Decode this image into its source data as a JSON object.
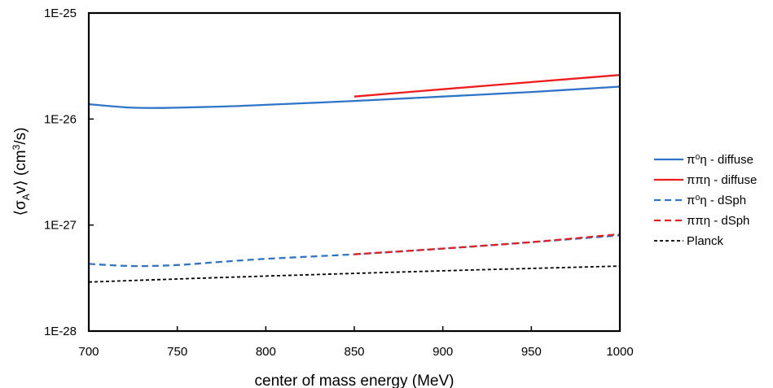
{
  "chart_data": {
    "type": "line",
    "title": "",
    "xlabel": "center of mass energy (MeV)",
    "ylabel_parts": [
      "⟨σ",
      "A",
      "v⟩ (cm",
      "3",
      "/s)"
    ],
    "x_ticks": [
      "700",
      "750",
      "800",
      "850",
      "900",
      "950",
      "1000"
    ],
    "y_ticks": [
      "1E-28",
      "1E-27",
      "1E-26",
      "1E-25"
    ],
    "xlim": [
      700,
      1000
    ],
    "ylim": [
      1e-28,
      1e-25
    ],
    "y_scale": "log",
    "grid": false,
    "legend_position": "right",
    "series": [
      {
        "name": "π⁰η - diffuse",
        "color": "#2e75c9",
        "dash": "solid",
        "x": [
          700,
          725,
          750,
          775,
          800,
          850,
          900,
          950,
          1000
        ],
        "y": [
          1.38e-26,
          1.28e-26,
          1.28e-26,
          1.31e-26,
          1.36e-26,
          1.48e-26,
          1.63e-26,
          1.8e-26,
          2.02e-26
        ]
      },
      {
        "name": "ππη - diffuse",
        "color": "#ee1c1c",
        "dash": "solid",
        "x": [
          850,
          900,
          950,
          1000
        ],
        "y": [
          1.63e-26,
          1.91e-26,
          2.23e-26,
          2.6e-26
        ]
      },
      {
        "name": "π⁰η - dSph",
        "color": "#2e75c9",
        "dash": "dashed",
        "x": [
          700,
          725,
          750,
          775,
          800,
          850,
          900,
          950,
          1000
        ],
        "y": [
          4.3e-28,
          4.1e-28,
          4.2e-28,
          4.5e-28,
          4.8e-28,
          5.3e-28,
          6e-28,
          6.9e-28,
          8e-28
        ]
      },
      {
        "name": "ππη - dSph",
        "color": "#ee1c1c",
        "dash": "dashed",
        "x": [
          850,
          900,
          950,
          1000
        ],
        "y": [
          5.3e-28,
          6e-28,
          6.9e-28,
          8.2e-28
        ]
      },
      {
        "name": "Planck",
        "color": "#000000",
        "dash": "dotted",
        "x": [
          700,
          750,
          800,
          850,
          900,
          950,
          1000
        ],
        "y": [
          2.9e-28,
          3.1e-28,
          3.3e-28,
          3.5e-28,
          3.7e-28,
          3.9e-28,
          4.1e-28
        ]
      }
    ]
  }
}
